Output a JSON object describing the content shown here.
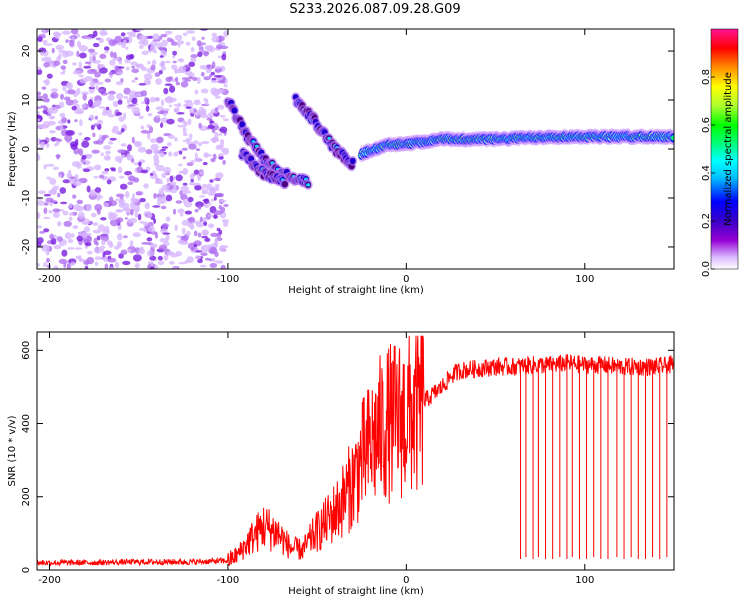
{
  "page_title": "S233.2026.087.09.28.G09",
  "chart_data": [
    {
      "type": "heatmap",
      "name": "spectrogram",
      "xlabel": "Height of straight line (km)",
      "ylabel": "Frequency (Hz)",
      "xlim": [
        -207,
        150
      ],
      "ylim": [
        -24.5,
        24.5
      ],
      "xticks": [
        -200,
        -100,
        0,
        100
      ],
      "yticks": [
        -20,
        -10,
        0,
        10,
        20
      ],
      "colorbar": {
        "label": "Normalized spectral amplitude",
        "range": [
          0,
          1
        ],
        "ticks": [
          "0.0",
          "0.2",
          "0.4",
          "0.6",
          "0.8"
        ],
        "colors": [
          "#ffffff",
          "#cc99ff",
          "#8a2be2",
          "#4b0082",
          "#0000ff",
          "#00bfff",
          "#00ffff",
          "#00ff7f",
          "#00ff00",
          "#adff2f",
          "#ffff00",
          "#ffa500",
          "#ff0000",
          "#ff1493"
        ]
      },
      "features": [
        {
          "name": "broadband noise",
          "x_range": [
            -207,
            -101
          ],
          "freq_range": [
            -24.5,
            24.5
          ],
          "amplitude": 0.15
        },
        {
          "name": "descending streak 1",
          "points": [
            [
              -100,
              10
            ],
            [
              -90,
              3
            ],
            [
              -80,
              -2
            ],
            [
              -72,
              -4.5
            ],
            [
              -55,
              -7
            ]
          ],
          "amplitude": 0.35
        },
        {
          "name": "descending streak 2",
          "points": [
            [
              -92,
              -1
            ],
            [
              -80,
              -5
            ],
            [
              -68,
              -7
            ]
          ],
          "amplitude": 0.3
        },
        {
          "name": "descending streak 3",
          "points": [
            [
              -62,
              10
            ],
            [
              -52,
              6
            ],
            [
              -40,
              0
            ],
            [
              -30,
              -3
            ]
          ],
          "amplitude": 0.32
        },
        {
          "name": "tone near 0 Hz",
          "points": [
            [
              -25,
              -1
            ],
            [
              -10,
              1
            ],
            [
              0,
              1
            ],
            [
              20,
              2
            ],
            [
              50,
              2
            ],
            [
              80,
              2.5
            ],
            [
              150,
              2.5
            ]
          ],
          "amplitude": 0.7
        }
      ]
    },
    {
      "type": "line",
      "name": "snr",
      "xlabel": "Height of straight line (km)",
      "ylabel": "SNR (10 * v/v)",
      "xlim": [
        -207,
        150
      ],
      "ylim": [
        0,
        650
      ],
      "xticks": [
        -200,
        -100,
        0,
        100
      ],
      "yticks": [
        0,
        200,
        400,
        600
      ],
      "color": "#ff0000",
      "series": [
        {
          "name": "SNR",
          "x": [
            -207,
            -180,
            -150,
            -120,
            -100,
            -95,
            -88,
            -80,
            -72,
            -65,
            -58,
            -52,
            -45,
            -38,
            -30,
            -25,
            -20,
            -15,
            -10,
            -5,
            0,
            5,
            10,
            15,
            20,
            25,
            30,
            40,
            50,
            60,
            70,
            80,
            90,
            100,
            110,
            120,
            130,
            140,
            150
          ],
          "y": [
            20,
            20,
            22,
            22,
            25,
            40,
            80,
            120,
            100,
            60,
            55,
            95,
            130,
            170,
            240,
            300,
            340,
            380,
            400,
            410,
            420,
            430,
            460,
            480,
            500,
            530,
            545,
            550,
            555,
            555,
            560,
            560,
            565,
            560,
            560,
            555,
            555,
            555,
            560
          ]
        },
        {
          "name": "dropouts",
          "x": [
            64,
            67,
            71,
            74,
            78,
            82,
            86,
            90,
            93,
            97,
            101,
            105,
            109,
            113,
            118,
            122,
            126,
            130,
            134,
            138,
            142,
            146
          ],
          "y": [
            30,
            35,
            30,
            35,
            30,
            30,
            35,
            30,
            35,
            30,
            30,
            35,
            30,
            30,
            35,
            30,
            35,
            30,
            30,
            35,
            30,
            35
          ]
        }
      ]
    }
  ]
}
